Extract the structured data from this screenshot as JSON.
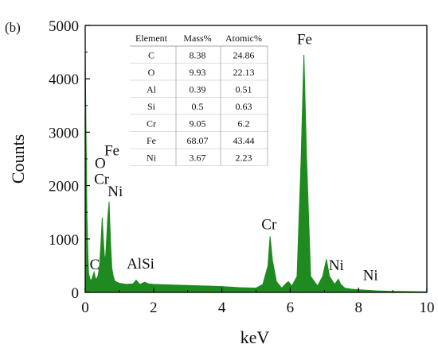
{
  "chart_data": {
    "type": "area",
    "panel_label": "(b)",
    "xlabel": "keV",
    "ylabel": "Counts",
    "xlim": [
      0,
      10
    ],
    "ylim": [
      0,
      5000
    ],
    "x_ticks": [
      "0",
      "2",
      "4",
      "6",
      "8",
      "10"
    ],
    "y_ticks": [
      "0",
      "1000",
      "2000",
      "3000",
      "4000",
      "5000"
    ],
    "grid": false,
    "series_color": "#1f8a1f",
    "spectrum_x": [
      0.0,
      0.02,
      0.05,
      0.08,
      0.1,
      0.14,
      0.18,
      0.22,
      0.26,
      0.3,
      0.34,
      0.38,
      0.42,
      0.46,
      0.5,
      0.53,
      0.56,
      0.59,
      0.62,
      0.66,
      0.7,
      0.72,
      0.75,
      0.78,
      0.82,
      0.86,
      0.9,
      1.0,
      1.2,
      1.4,
      1.49,
      1.6,
      1.74,
      1.85,
      2.0,
      2.5,
      3.0,
      3.5,
      4.0,
      4.5,
      5.0,
      5.2,
      5.35,
      5.41,
      5.48,
      5.6,
      5.75,
      5.9,
      5.95,
      6.05,
      6.2,
      6.32,
      6.4,
      6.48,
      6.6,
      6.8,
      6.95,
      7.06,
      7.15,
      7.3,
      7.41,
      7.48,
      7.6,
      7.8,
      8.0,
      8.5,
      9.0,
      9.5,
      10.0
    ],
    "spectrum_y": [
      4500,
      3200,
      1500,
      700,
      350,
      250,
      220,
      300,
      380,
      250,
      260,
      320,
      500,
      900,
      1400,
      1000,
      700,
      600,
      900,
      1400,
      1700,
      1300,
      800,
      450,
      300,
      220,
      200,
      170,
      150,
      160,
      230,
      150,
      190,
      160,
      150,
      140,
      130,
      120,
      110,
      90,
      80,
      150,
      500,
      1050,
      600,
      200,
      80,
      180,
      200,
      120,
      300,
      2500,
      4450,
      2500,
      300,
      120,
      300,
      620,
      300,
      150,
      250,
      150,
      80,
      60,
      50,
      30,
      20,
      15,
      10
    ],
    "peak_labels": [
      {
        "text": "Fe",
        "x": 6.42,
        "y": 4650
      },
      {
        "text": "Cr",
        "x": 5.38,
        "y": 1180
      },
      {
        "text": "Ni",
        "x": 7.35,
        "y": 420
      },
      {
        "text": "Ni",
        "x": 8.35,
        "y": 230
      },
      {
        "text": "Fe",
        "x": 0.78,
        "y": 2570
      },
      {
        "text": "O",
        "x": 0.44,
        "y": 2330
      },
      {
        "text": "Cr",
        "x": 0.48,
        "y": 2030
      },
      {
        "text": "Ni",
        "x": 0.88,
        "y": 1800
      },
      {
        "text": "C",
        "x": 0.28,
        "y": 430
      },
      {
        "text": "AlSi",
        "x": 1.62,
        "y": 450
      }
    ],
    "table": {
      "headers": [
        "Element",
        "Mass%",
        "Atomic%"
      ],
      "rows": [
        [
          "C",
          "8.38",
          "24.86"
        ],
        [
          "O",
          "9.93",
          "22.13"
        ],
        [
          "Al",
          "0.39",
          "0.51"
        ],
        [
          "Si",
          "0.5",
          "0.63"
        ],
        [
          "Cr",
          "9.05",
          "6.2"
        ],
        [
          "Fe",
          "68.07",
          "43.44"
        ],
        [
          "Ni",
          "3.67",
          "2.23"
        ]
      ]
    }
  }
}
